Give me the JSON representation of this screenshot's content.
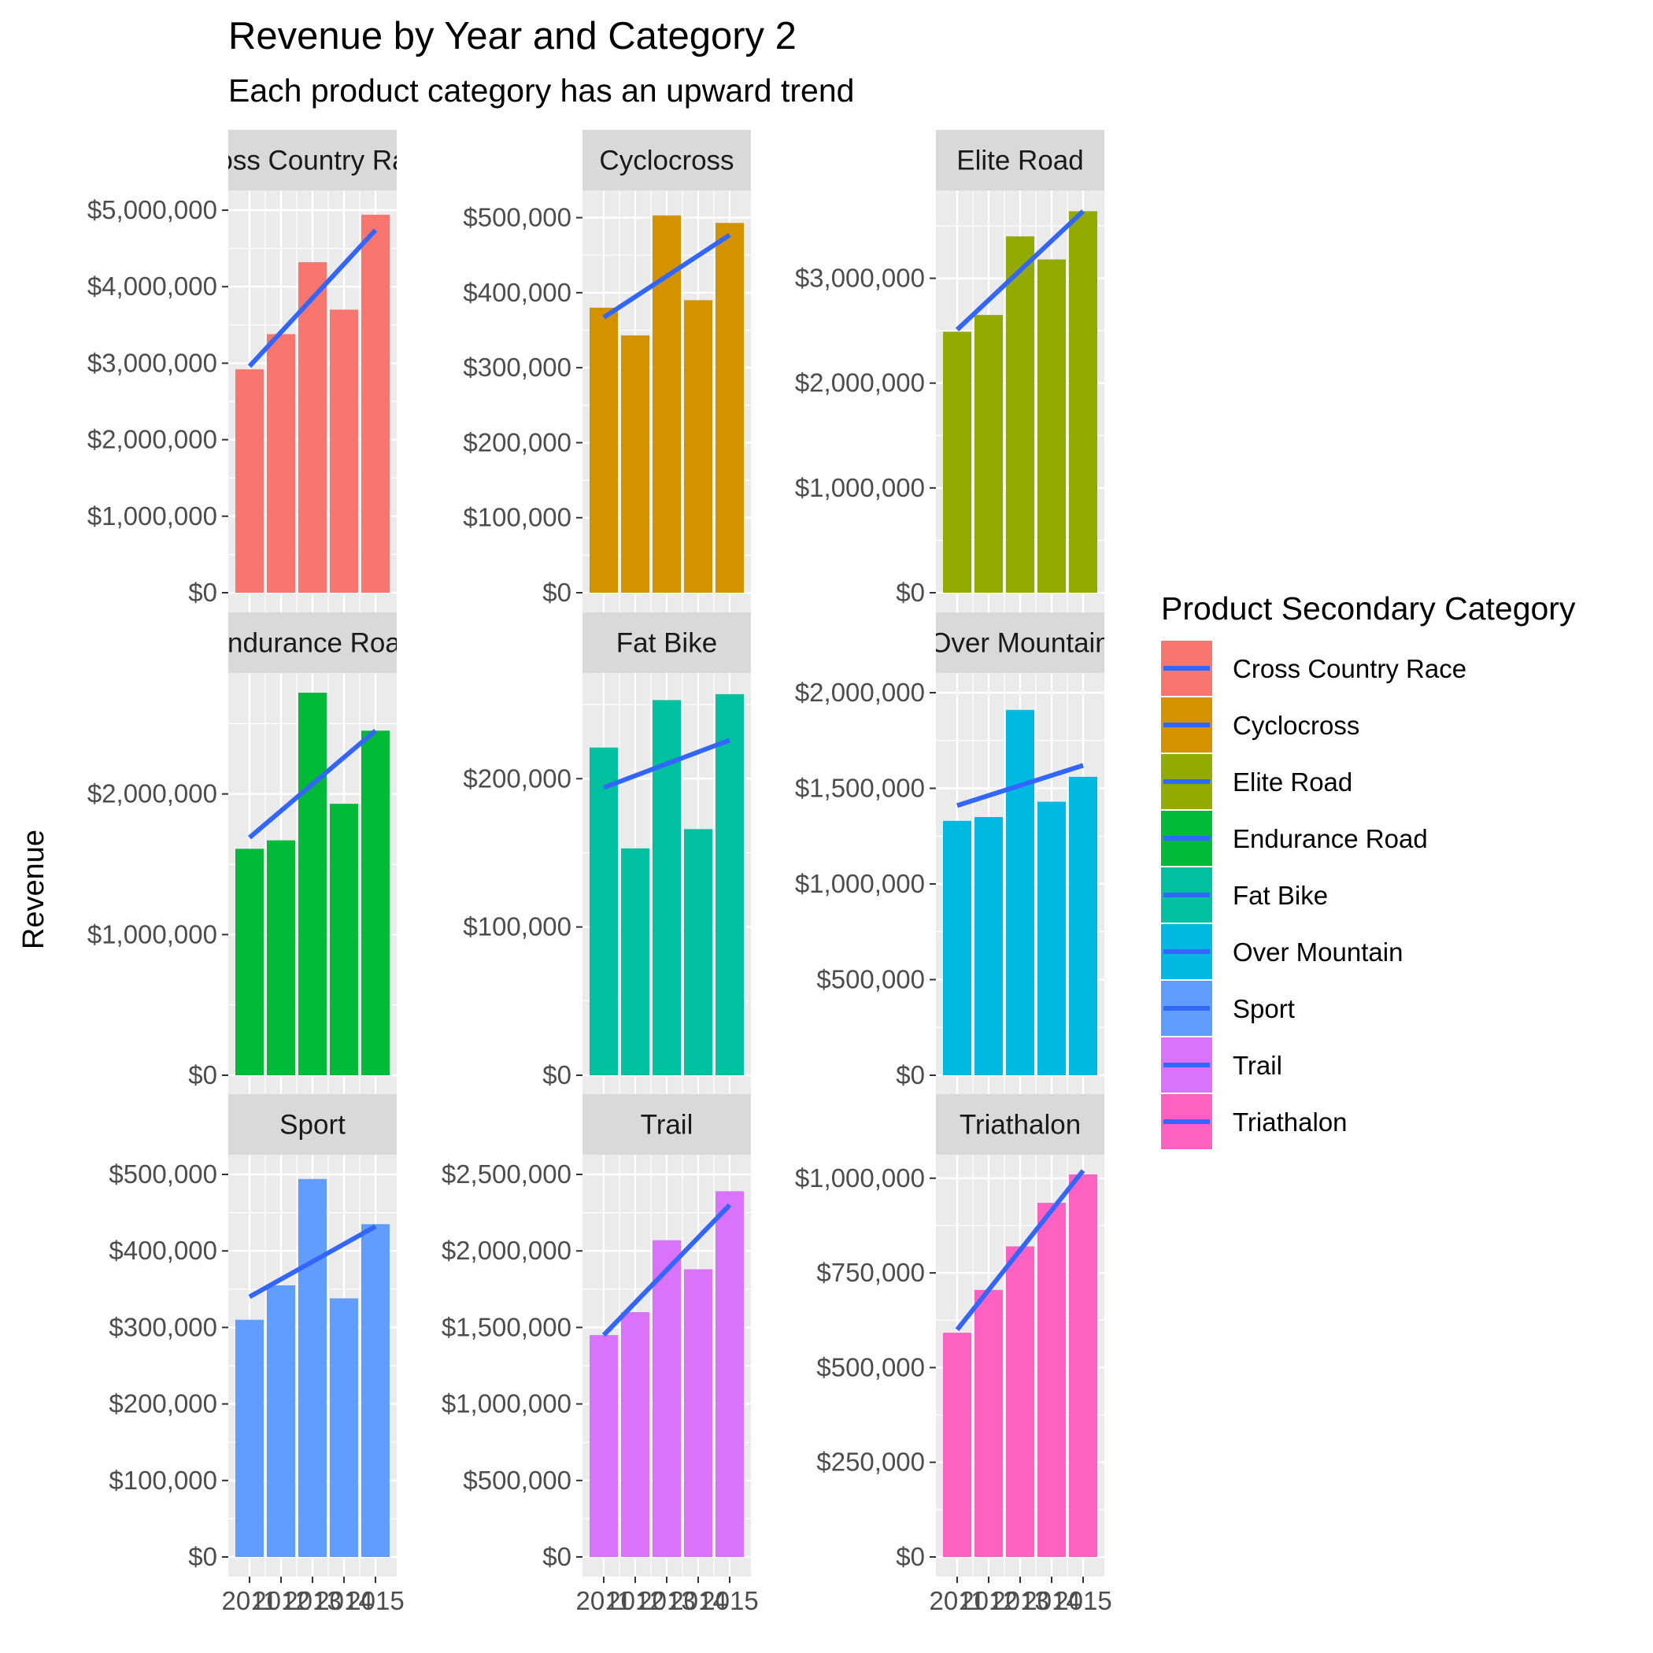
{
  "chart_data": {
    "type": "bar",
    "title": "Revenue by Year and Category 2",
    "subtitle": "Each product category has an upward trend",
    "ylabel": "Revenue",
    "xlabel": "",
    "x": [
      2011,
      2012,
      2013,
      2014,
      2015
    ],
    "x_tick_labels": [
      "2011",
      "2012",
      "2013",
      "2014",
      "2015"
    ],
    "trend_line_color": "#3366FF",
    "panel_background": "#EBEBEB",
    "strip_background": "#D9D9D9",
    "legend": {
      "title": "Product Secondary Category",
      "position": "right",
      "items": [
        {
          "label": "Cross Country Race",
          "color": "#F8766D"
        },
        {
          "label": "Cyclocross",
          "color": "#D39200"
        },
        {
          "label": "Elite Road",
          "color": "#93AA00"
        },
        {
          "label": "Endurance Road",
          "color": "#00BA38"
        },
        {
          "label": "Fat Bike",
          "color": "#00C19F"
        },
        {
          "label": "Over Mountain",
          "color": "#00B9E3"
        },
        {
          "label": "Sport",
          "color": "#619CFF"
        },
        {
          "label": "Trail",
          "color": "#DB72FB"
        },
        {
          "label": "Triathalon",
          "color": "#FF61C3"
        }
      ]
    },
    "facets": [
      {
        "strip": "Cross Country Race",
        "color": "#F8766D",
        "ylim": [
          0,
          5000000
        ],
        "y_ticks": [
          0,
          1000000,
          2000000,
          3000000,
          4000000,
          5000000
        ],
        "y_tick_labels": [
          "$0",
          "$1,000,000",
          "$2,000,000",
          "$3,000,000",
          "$4,000,000",
          "$5,000,000"
        ],
        "values": [
          2920000,
          3380000,
          4320000,
          3700000,
          4940000
        ],
        "trend": [
          2960000,
          4740000
        ]
      },
      {
        "strip": "Cyclocross",
        "color": "#D39200",
        "ylim": [
          0,
          510000
        ],
        "y_ticks": [
          0,
          100000,
          200000,
          300000,
          400000,
          500000
        ],
        "y_tick_labels": [
          "$0",
          "$100,000",
          "$200,000",
          "$300,000",
          "$400,000",
          "$500,000"
        ],
        "values": [
          380000,
          343000,
          503000,
          390000,
          493000
        ],
        "trend": [
          367000,
          477000
        ]
      },
      {
        "strip": "Elite Road",
        "color": "#93AA00",
        "ylim": [
          0,
          3650000
        ],
        "y_ticks": [
          0,
          1000000,
          2000000,
          3000000
        ],
        "y_tick_labels": [
          "$0",
          "$1,000,000",
          "$2,000,000",
          "$3,000,000"
        ],
        "values": [
          2490000,
          2650000,
          3400000,
          3180000,
          3640000
        ],
        "trend": [
          2510000,
          3640000
        ]
      },
      {
        "strip": "Endurance Road",
        "color": "#00BA38",
        "ylim": [
          0,
          2720000
        ],
        "y_ticks": [
          0,
          1000000,
          2000000
        ],
        "y_tick_labels": [
          "$0",
          "$1,000,000",
          "$2,000,000"
        ],
        "values": [
          1610000,
          1670000,
          2720000,
          1930000,
          2450000
        ],
        "trend": [
          1690000,
          2450000
        ]
      },
      {
        "strip": "Fat Bike",
        "color": "#00C19F",
        "ylim": [
          0,
          258000
        ],
        "y_ticks": [
          0,
          100000,
          200000
        ],
        "y_tick_labels": [
          "$0",
          "$100,000",
          "$200,000"
        ],
        "values": [
          221000,
          153000,
          253000,
          166000,
          257000
        ],
        "trend": [
          194000,
          226000
        ]
      },
      {
        "strip": "Over Mountain",
        "color": "#00B9E3",
        "ylim": [
          0,
          2000000
        ],
        "y_ticks": [
          0,
          500000,
          1000000,
          1500000,
          2000000
        ],
        "y_tick_labels": [
          "$0",
          "$500,000",
          "$1,000,000",
          "$1,500,000",
          "$2,000,000"
        ],
        "values": [
          1330000,
          1350000,
          1910000,
          1430000,
          1560000
        ],
        "trend": [
          1410000,
          1620000
        ]
      },
      {
        "strip": "Sport",
        "color": "#619CFF",
        "ylim": [
          0,
          500000
        ],
        "y_ticks": [
          0,
          100000,
          200000,
          300000,
          400000,
          500000
        ],
        "y_tick_labels": [
          "$0",
          "$100,000",
          "$200,000",
          "$300,000",
          "$400,000",
          "$500,000"
        ],
        "values": [
          310000,
          355000,
          494000,
          338000,
          435000
        ],
        "trend": [
          340000,
          432000
        ]
      },
      {
        "strip": "Trail",
        "color": "#DB72FB",
        "ylim": [
          0,
          2500000
        ],
        "y_ticks": [
          0,
          500000,
          1000000,
          1500000,
          2000000,
          2500000
        ],
        "y_tick_labels": [
          "$0",
          "$500,000",
          "$1,000,000",
          "$1,500,000",
          "$2,000,000",
          "$2,500,000"
        ],
        "values": [
          1450000,
          1600000,
          2070000,
          1880000,
          2390000
        ],
        "trend": [
          1450000,
          2300000
        ]
      },
      {
        "strip": "Triathalon",
        "color": "#FF61C3",
        "ylim": [
          0,
          1010000
        ],
        "y_ticks": [
          0,
          250000,
          500000,
          750000,
          1000000
        ],
        "y_tick_labels": [
          "$0",
          "$250,000",
          "$500,000",
          "$750,000",
          "$1,000,000"
        ],
        "values": [
          592000,
          705000,
          820000,
          935000,
          1010000
        ],
        "trend": [
          600000,
          1020000
        ]
      }
    ]
  }
}
